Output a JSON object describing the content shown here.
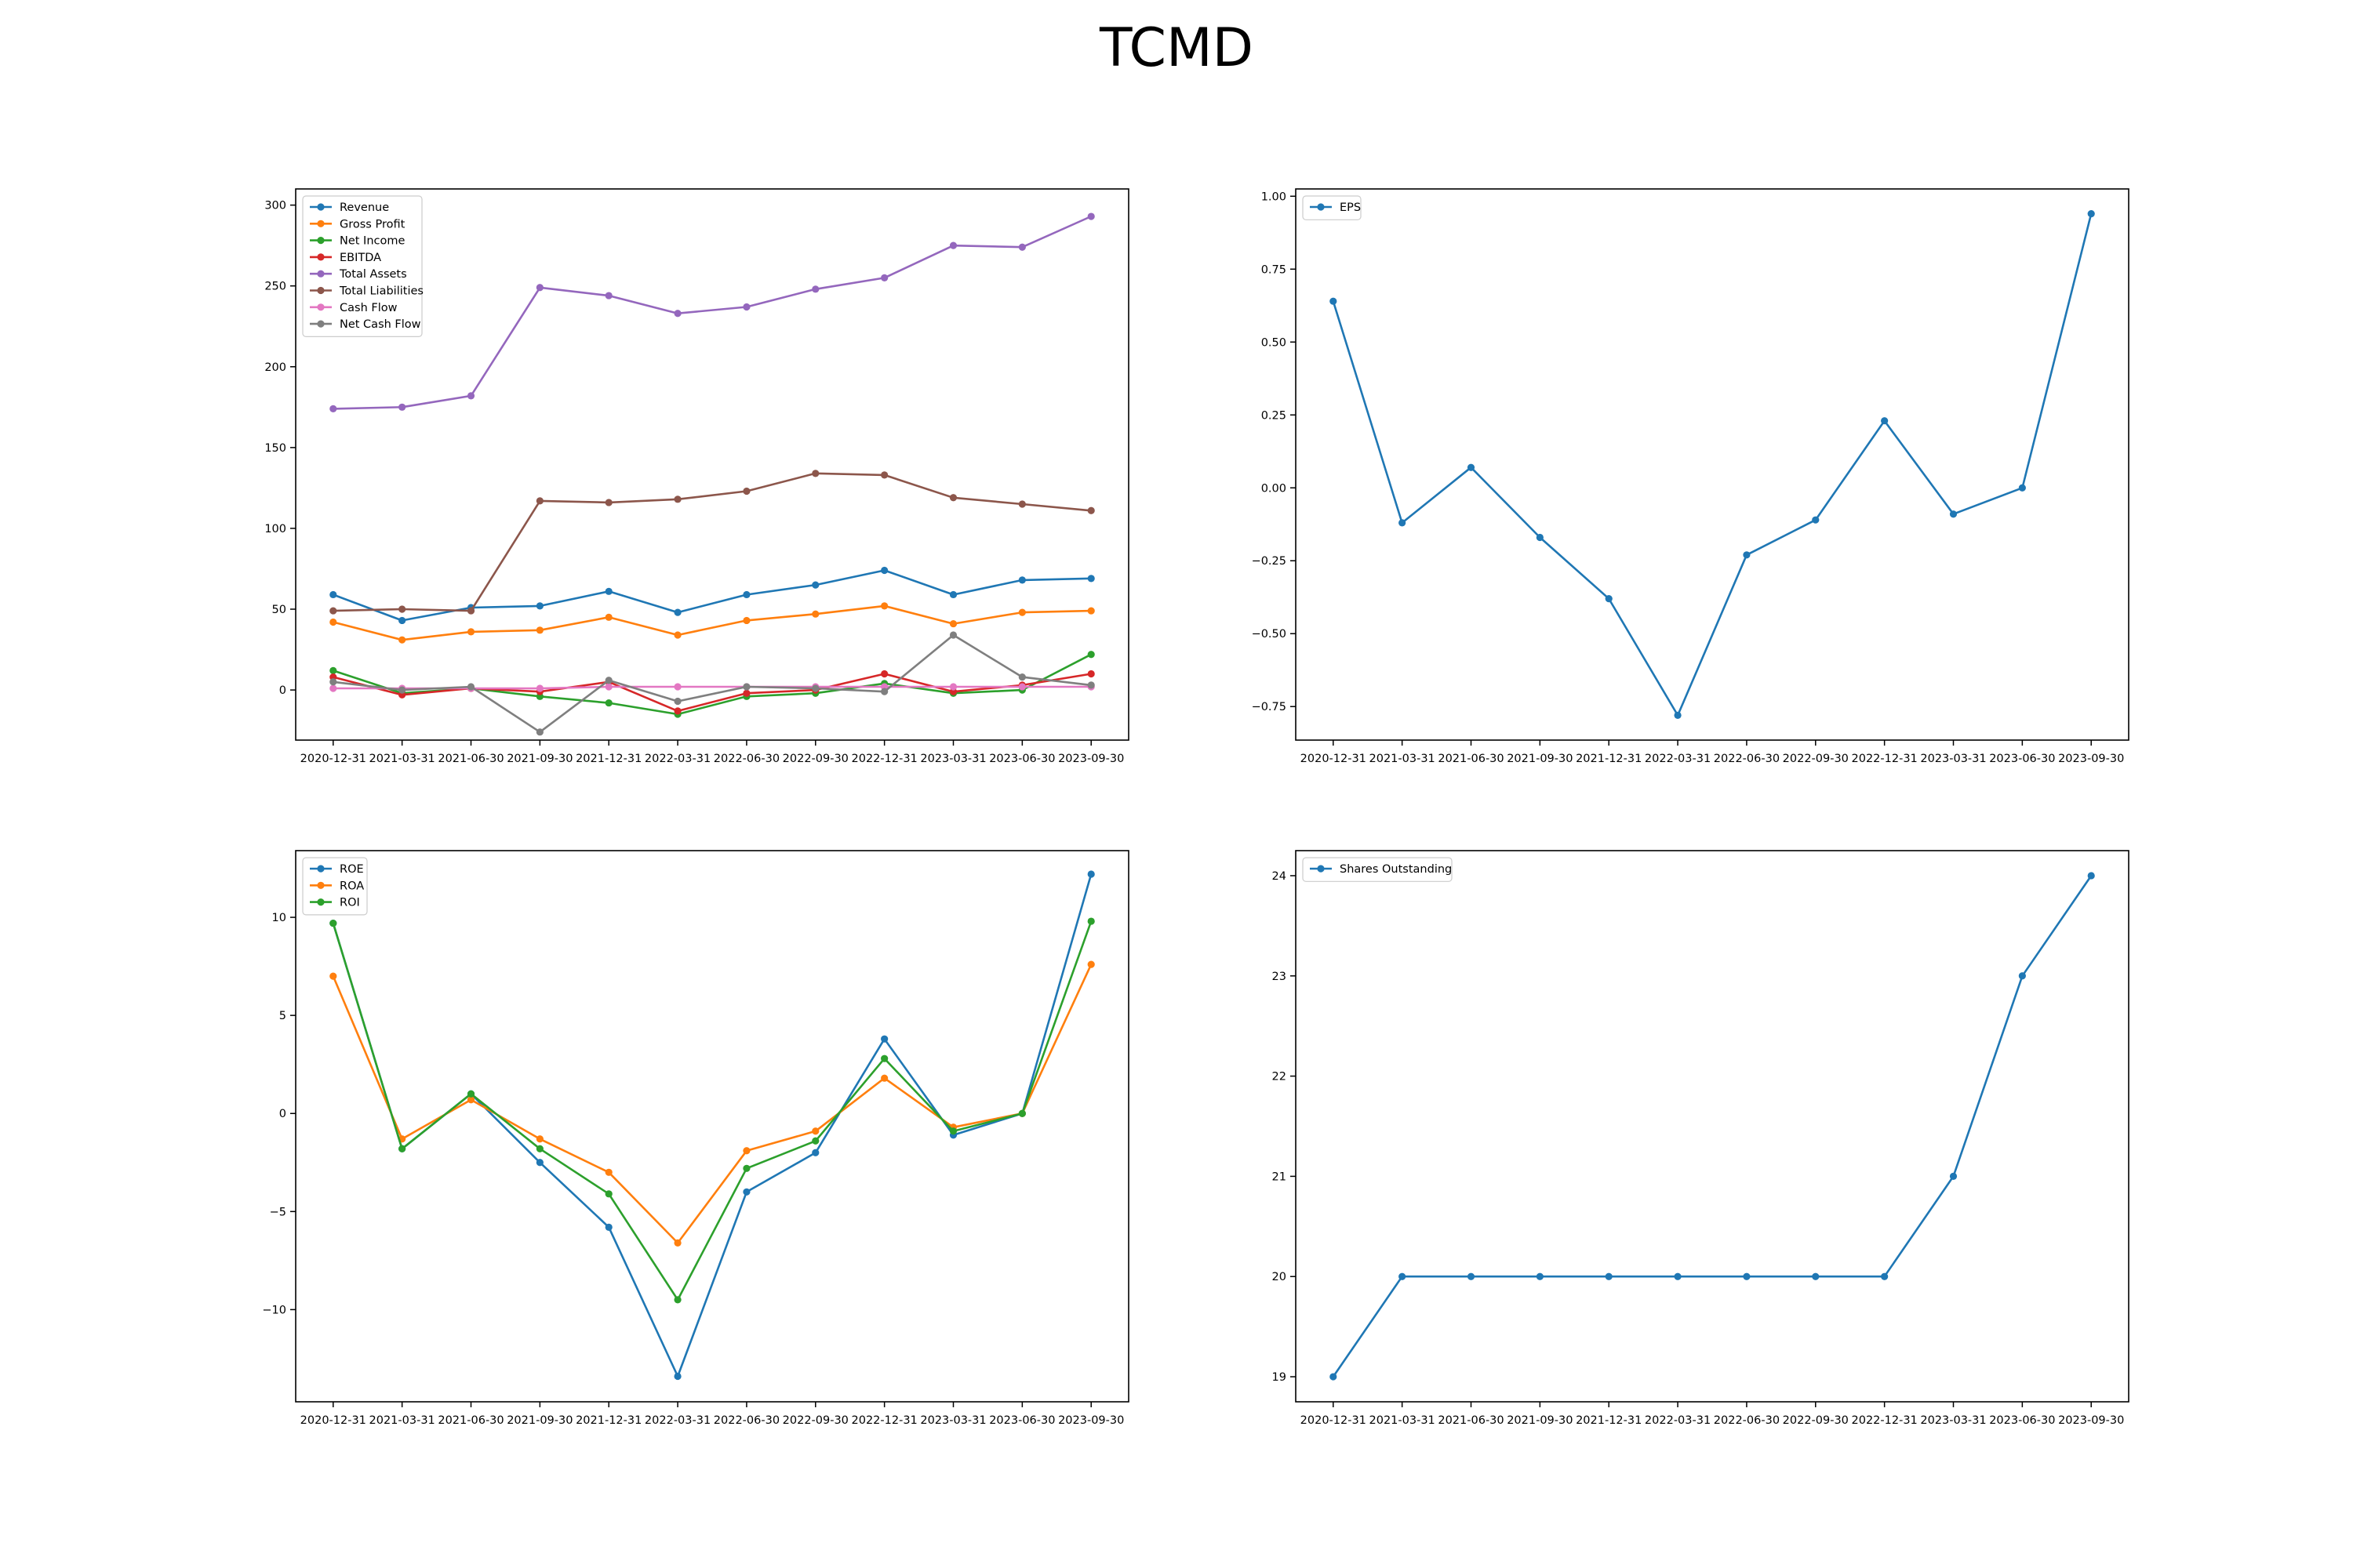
{
  "title": "TCMD",
  "chart_data": [
    {
      "type": "line",
      "categories": [
        "2020-12-31",
        "2021-03-31",
        "2021-06-30",
        "2021-09-30",
        "2021-12-31",
        "2022-03-31",
        "2022-06-30",
        "2022-09-30",
        "2022-12-31",
        "2023-03-31",
        "2023-06-30",
        "2023-09-30"
      ],
      "ylim": [
        -31,
        310
      ],
      "yticks": [
        0,
        50,
        100,
        150,
        200,
        250,
        300
      ],
      "ytick_labels": [
        "0",
        "50",
        "100",
        "150",
        "200",
        "250",
        "300"
      ],
      "legend": "top-left",
      "grid": false,
      "series": [
        {
          "name": "Revenue",
          "color": "#1f77b4",
          "values": [
            59,
            43,
            51,
            52,
            61,
            48,
            59,
            65,
            74,
            59,
            68,
            69
          ]
        },
        {
          "name": "Gross Profit",
          "color": "#ff7f0e",
          "values": [
            42,
            31,
            36,
            37,
            45,
            34,
            43,
            47,
            52,
            41,
            48,
            49
          ]
        },
        {
          "name": "Net Income",
          "color": "#2ca02c",
          "values": [
            12,
            -2,
            1,
            -4,
            -8,
            -15,
            -4,
            -2,
            4,
            -2,
            0,
            22
          ]
        },
        {
          "name": "EBITDA",
          "color": "#d62728",
          "values": [
            8,
            -3,
            1,
            -1,
            5,
            -13,
            -2,
            0,
            10,
            -1,
            3,
            10
          ]
        },
        {
          "name": "Total Assets",
          "color": "#9467bd",
          "values": [
            174,
            175,
            182,
            249,
            244,
            233,
            237,
            248,
            255,
            275,
            274,
            293
          ]
        },
        {
          "name": "Total Liabilities",
          "color": "#8c564b",
          "values": [
            49,
            50,
            49,
            117,
            116,
            118,
            123,
            134,
            133,
            119,
            115,
            111
          ]
        },
        {
          "name": "Cash Flow",
          "color": "#e377c2",
          "values": [
            1,
            1,
            1,
            1,
            2,
            2,
            2,
            2,
            2,
            2,
            2,
            2
          ]
        },
        {
          "name": "Net Cash Flow",
          "color": "#7f7f7f",
          "values": [
            5,
            0,
            2,
            -26,
            6,
            -7,
            2,
            1,
            -1,
            34,
            8,
            3
          ]
        }
      ]
    },
    {
      "type": "line",
      "categories": [
        "2020-12-31",
        "2021-03-31",
        "2021-06-30",
        "2021-09-30",
        "2021-12-31",
        "2022-03-31",
        "2022-06-30",
        "2022-09-30",
        "2022-12-31",
        "2023-03-31",
        "2023-06-30",
        "2023-09-30"
      ],
      "ylim": [
        -0.865,
        1.025
      ],
      "yticks": [
        -0.75,
        -0.5,
        -0.25,
        0,
        0.25,
        0.5,
        0.75,
        1.0
      ],
      "ytick_labels": [
        "−0.75",
        "−0.50",
        "−0.25",
        "0.00",
        "0.25",
        "0.50",
        "0.75",
        "1.00"
      ],
      "legend": "top-left",
      "grid": false,
      "series": [
        {
          "name": "EPS",
          "color": "#1f77b4",
          "values": [
            0.64,
            -0.12,
            0.07,
            -0.17,
            -0.38,
            -0.78,
            -0.23,
            -0.11,
            0.23,
            -0.09,
            0.0,
            0.94
          ]
        }
      ]
    },
    {
      "type": "line",
      "categories": [
        "2020-12-31",
        "2021-03-31",
        "2021-06-30",
        "2021-09-30",
        "2021-12-31",
        "2022-03-31",
        "2022-06-30",
        "2022-09-30",
        "2022-12-31",
        "2023-03-31",
        "2023-06-30",
        "2023-09-30"
      ],
      "ylim": [
        -14.7,
        13.4
      ],
      "yticks": [
        -10,
        -5,
        0,
        5,
        10
      ],
      "ytick_labels": [
        "−10",
        "−5",
        "0",
        "5",
        "10"
      ],
      "legend": "top-left",
      "grid": false,
      "series": [
        {
          "name": "ROE",
          "color": "#1f77b4",
          "values": [
            9.7,
            -1.8,
            1.0,
            -2.5,
            -5.8,
            -13.4,
            -4.0,
            -2.0,
            3.8,
            -1.1,
            0.0,
            12.2
          ]
        },
        {
          "name": "ROA",
          "color": "#ff7f0e",
          "values": [
            7.0,
            -1.3,
            0.7,
            -1.3,
            -3.0,
            -6.6,
            -1.9,
            -0.9,
            1.8,
            -0.7,
            0.0,
            7.6
          ]
        },
        {
          "name": "ROI",
          "color": "#2ca02c",
          "values": [
            9.7,
            -1.8,
            1.0,
            -1.8,
            -4.1,
            -9.5,
            -2.8,
            -1.4,
            2.8,
            -0.9,
            0.0,
            9.8
          ]
        }
      ]
    },
    {
      "type": "line",
      "categories": [
        "2020-12-31",
        "2021-03-31",
        "2021-06-30",
        "2021-09-30",
        "2021-12-31",
        "2022-03-31",
        "2022-06-30",
        "2022-09-30",
        "2022-12-31",
        "2023-03-31",
        "2023-06-30",
        "2023-09-30"
      ],
      "ylim": [
        18.75,
        24.25
      ],
      "yticks": [
        19,
        20,
        21,
        22,
        23,
        24
      ],
      "ytick_labels": [
        "19",
        "20",
        "21",
        "22",
        "23",
        "24"
      ],
      "legend": "top-left",
      "grid": false,
      "series": [
        {
          "name": "Shares Outstanding",
          "color": "#1f77b4",
          "values": [
            19,
            20,
            20,
            20,
            20,
            20,
            20,
            20,
            20,
            21,
            23,
            24
          ]
        }
      ]
    }
  ]
}
